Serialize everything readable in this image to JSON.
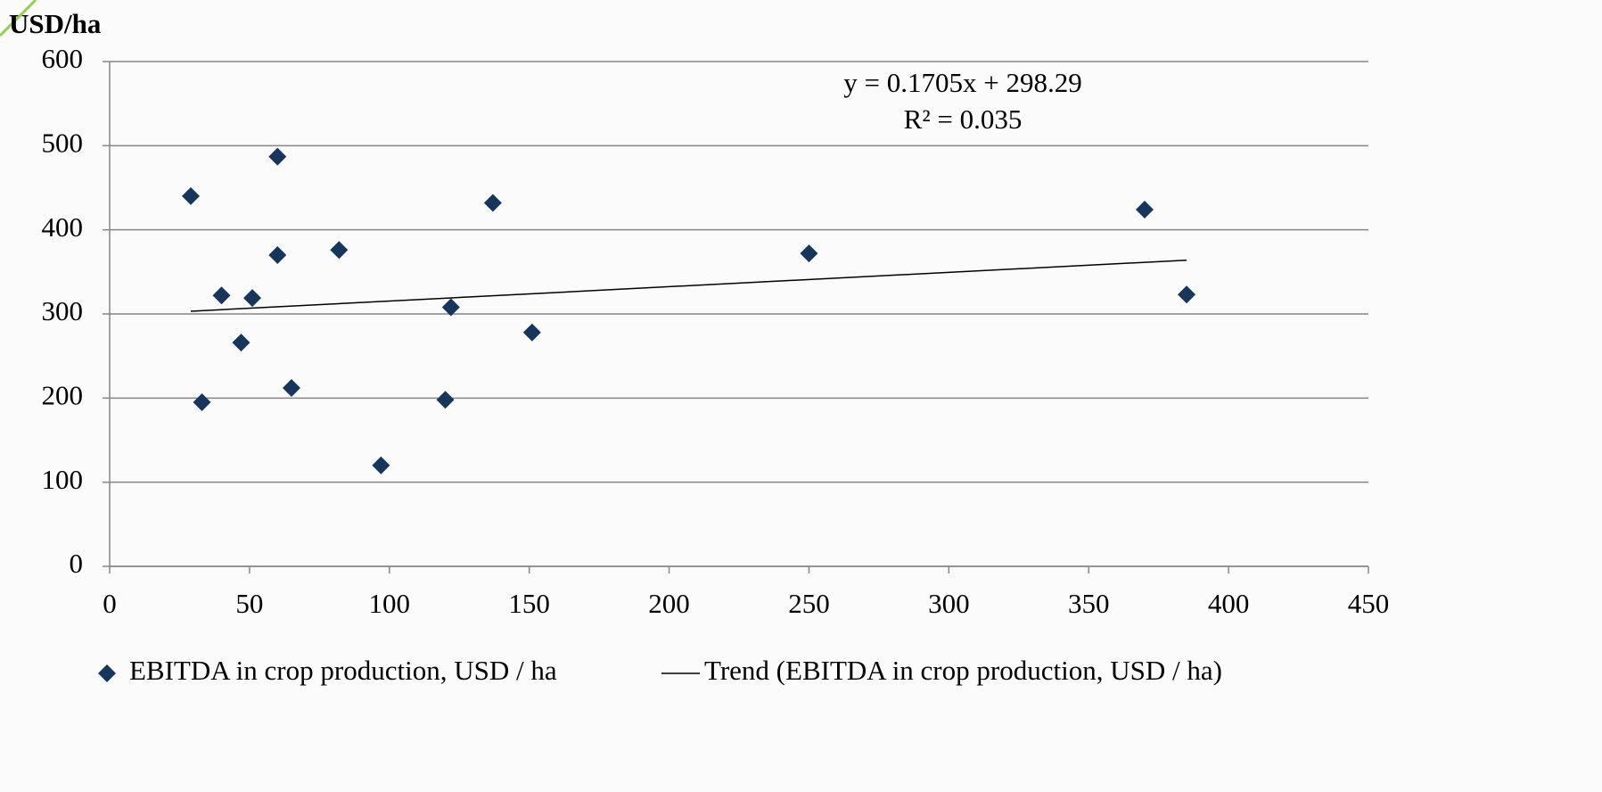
{
  "chart_data": {
    "type": "scatter",
    "y_axis_label": "USD/ha",
    "series": [
      {
        "name": "EBITDA in crop production, USD / ha",
        "color": "#17365d",
        "x": [
          29,
          33,
          40,
          47,
          51,
          60,
          60,
          65,
          82,
          97,
          120,
          122,
          137,
          151,
          250,
          370,
          385
        ],
        "values": [
          440,
          195,
          322,
          266,
          319,
          487,
          370,
          212,
          376,
          120,
          198,
          308,
          432,
          278,
          372,
          424,
          323
        ]
      }
    ],
    "trendline": {
      "name": "Trend (EBITDA in crop production, USD / ha)",
      "color": "#000000",
      "slope": 0.1705,
      "intercept": 298.29,
      "equation": "y = 0.1705x + 298.29",
      "r_squared_label": "R² = 0.035"
    },
    "xlim": [
      0,
      450
    ],
    "xticks": [
      0,
      50,
      100,
      150,
      200,
      250,
      300,
      350,
      400,
      450
    ],
    "ylim": [
      0,
      600
    ],
    "yticks": [
      0,
      100,
      200,
      300,
      400,
      500,
      600
    ],
    "grid": true,
    "legend": "bottom"
  }
}
